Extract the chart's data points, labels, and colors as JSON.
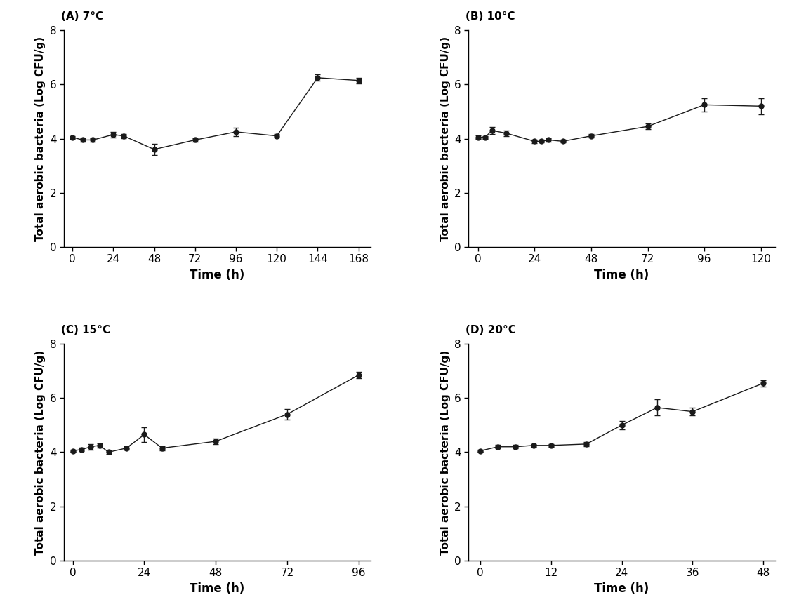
{
  "panels": [
    {
      "label": "(A) 7°C",
      "x": [
        0,
        6,
        12,
        24,
        30,
        48,
        72,
        96,
        120,
        144,
        168
      ],
      "y": [
        4.05,
        3.95,
        3.95,
        4.15,
        4.1,
        3.6,
        3.95,
        4.25,
        4.1,
        6.25,
        6.15
      ],
      "yerr": [
        0.05,
        0.07,
        0.06,
        0.1,
        0.08,
        0.2,
        0.06,
        0.15,
        0.07,
        0.12,
        0.1
      ],
      "xlim": [
        -5,
        175
      ],
      "xticks": [
        0,
        24,
        48,
        72,
        96,
        120,
        144,
        168
      ],
      "ylim": [
        0,
        8
      ],
      "yticks": [
        0,
        2,
        4,
        6,
        8
      ]
    },
    {
      "label": "(B) 10°C",
      "x": [
        0,
        3,
        6,
        12,
        24,
        27,
        30,
        36,
        48,
        72,
        96,
        120
      ],
      "y": [
        4.05,
        4.05,
        4.3,
        4.2,
        3.9,
        3.9,
        3.95,
        3.9,
        4.1,
        4.45,
        5.25,
        5.2
      ],
      "yerr": [
        0.06,
        0.05,
        0.12,
        0.1,
        0.07,
        0.05,
        0.06,
        0.05,
        0.06,
        0.1,
        0.25,
        0.3
      ],
      "xlim": [
        -4,
        126
      ],
      "xticks": [
        0,
        24,
        48,
        72,
        96,
        120
      ],
      "ylim": [
        0,
        8
      ],
      "yticks": [
        0,
        2,
        4,
        6,
        8
      ]
    },
    {
      "label": "(C) 15°C",
      "x": [
        0,
        3,
        6,
        9,
        12,
        18,
        24,
        30,
        48,
        72,
        96
      ],
      "y": [
        4.05,
        4.1,
        4.2,
        4.25,
        4.0,
        4.15,
        4.65,
        4.15,
        4.4,
        5.4,
        6.85
      ],
      "yerr": [
        0.05,
        0.07,
        0.1,
        0.08,
        0.06,
        0.06,
        0.28,
        0.08,
        0.1,
        0.2,
        0.12
      ],
      "xlim": [
        -3,
        100
      ],
      "xticks": [
        0,
        24,
        48,
        72,
        96
      ],
      "ylim": [
        0,
        8
      ],
      "yticks": [
        0,
        2,
        4,
        6,
        8
      ]
    },
    {
      "label": "(D) 20°C",
      "x": [
        0,
        3,
        6,
        9,
        12,
        18,
        24,
        30,
        36,
        48
      ],
      "y": [
        4.05,
        4.2,
        4.2,
        4.25,
        4.25,
        4.3,
        5.0,
        5.65,
        5.5,
        6.55
      ],
      "yerr": [
        0.05,
        0.07,
        0.06,
        0.06,
        0.06,
        0.07,
        0.15,
        0.3,
        0.15,
        0.12
      ],
      "xlim": [
        -2,
        50
      ],
      "xticks": [
        0,
        12,
        24,
        36,
        48
      ],
      "ylim": [
        0,
        8
      ],
      "yticks": [
        0,
        2,
        4,
        6,
        8
      ]
    }
  ],
  "ylabel": "Total aerobic bacteria (Log CFU/g)",
  "xlabel": "Time (h)",
  "background_color": "#ffffff",
  "line_color": "#1a1a1a",
  "marker_color": "#1a1a1a",
  "marker_size": 5,
  "line_width": 1.0,
  "capsize": 3,
  "elinewidth": 1.0,
  "label_fontsize": 11,
  "axis_label_fontsize": 12,
  "tick_fontsize": 11
}
